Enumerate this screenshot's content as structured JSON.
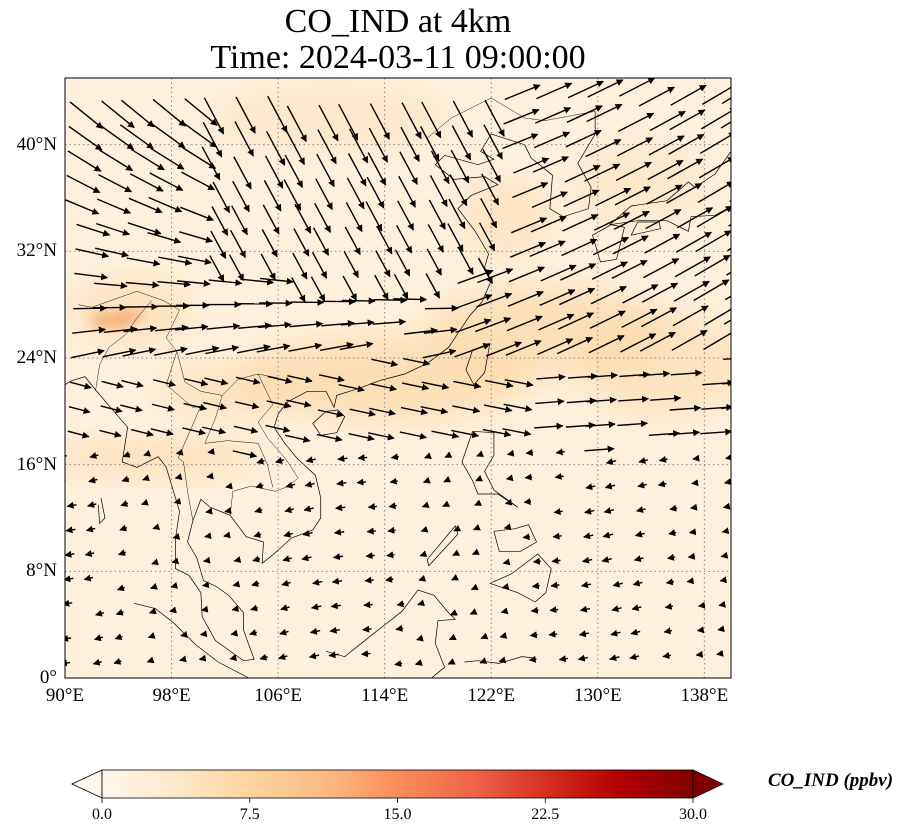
{
  "title": {
    "line1": "CO_IND at 4km",
    "line2": "Time: 2024-03-11 09:00:00"
  },
  "map": {
    "projection": "PlateCarree",
    "lon_range": [
      90,
      140
    ],
    "lat_range": [
      0,
      45
    ],
    "gridlines": "dotted",
    "lat_ticks": [
      "0°",
      "8°N",
      "16°N",
      "24°N",
      "32°N",
      "40°N"
    ],
    "lon_ticks": [
      "90°E",
      "98°E",
      "106°E",
      "114°E",
      "122°E",
      "130°E",
      "138°E"
    ],
    "colormap": "OrRd",
    "background_color": "#fdf0dc",
    "plume_color": "#fcd9a8",
    "hotspot_color": "#f6a86a",
    "vector_color": "#000000"
  },
  "colorbar": {
    "label": "CO_IND (ppbv)",
    "ticks": [
      "0.0",
      "7.5",
      "15.0",
      "22.5",
      "30.0"
    ],
    "range": [
      0,
      30
    ],
    "extend": "both",
    "colors": [
      "#fff7ec",
      "#fee8c8",
      "#fdd49e",
      "#fdbb84",
      "#fc8d59",
      "#ef6548",
      "#d7301f",
      "#b30000",
      "#7f0000"
    ]
  }
}
